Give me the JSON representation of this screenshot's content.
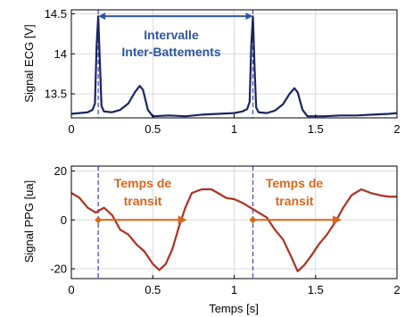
{
  "chart_data": [
    {
      "type": "line",
      "ylabel": "Signal ECG [V]",
      "xlim": [
        0,
        2
      ],
      "ylim": [
        13.2,
        14.55
      ],
      "x_ticks": [
        0,
        0.5,
        1,
        1.5,
        2
      ],
      "x_tick_labels": [
        "0",
        "0.5",
        "1",
        "1.5",
        "2"
      ],
      "y_ticks": [
        13.5,
        14,
        14.5
      ],
      "y_tick_labels": [
        "13.5",
        "14",
        "14.5"
      ],
      "grid": true,
      "series": [
        {
          "color": "#1a2560",
          "x": [
            0,
            0.05,
            0.1,
            0.13,
            0.145,
            0.155,
            0.165,
            0.175,
            0.185,
            0.2,
            0.25,
            0.3,
            0.35,
            0.39,
            0.42,
            0.44,
            0.47,
            0.5,
            0.6,
            0.7,
            0.8,
            0.9,
            1.0,
            1.05,
            1.08,
            1.095,
            1.105,
            1.115,
            1.125,
            1.135,
            1.15,
            1.2,
            1.25,
            1.3,
            1.34,
            1.37,
            1.39,
            1.42,
            1.45,
            1.55,
            1.65,
            1.75,
            1.85,
            1.95,
            2.0
          ],
          "y": [
            13.25,
            13.26,
            13.27,
            13.3,
            13.38,
            14.1,
            14.47,
            13.9,
            13.35,
            13.28,
            13.27,
            13.3,
            13.38,
            13.52,
            13.6,
            13.55,
            13.3,
            13.22,
            13.23,
            13.22,
            13.24,
            13.25,
            13.26,
            13.28,
            13.31,
            13.4,
            14.1,
            14.47,
            13.85,
            13.33,
            13.27,
            13.26,
            13.29,
            13.37,
            13.5,
            13.57,
            13.52,
            13.3,
            13.22,
            13.22,
            13.23,
            13.23,
            13.24,
            13.25,
            13.26
          ]
        }
      ],
      "markers_x": [
        0.165,
        1.115
      ],
      "annotation": {
        "text_lines": [
          "Intervalle",
          "Inter-Battements"
        ],
        "color": "#2e55a5",
        "arrow_x": [
          0.165,
          1.115
        ],
        "arrow_y": 14.47
      }
    },
    {
      "type": "line",
      "xlabel": "Temps [s]",
      "ylabel": "Signal PPG [ua]",
      "xlim": [
        0,
        2
      ],
      "ylim": [
        -24,
        22
      ],
      "x_ticks": [
        0,
        0.5,
        1,
        1.5,
        2
      ],
      "x_tick_labels": [
        "0",
        "0.5",
        "1",
        "1.5",
        "2"
      ],
      "y_ticks": [
        -20,
        0,
        20
      ],
      "y_tick_labels": [
        "-20",
        "0",
        "20"
      ],
      "grid": true,
      "series": [
        {
          "color": "#b03020",
          "x": [
            0,
            0.05,
            0.1,
            0.15,
            0.2,
            0.25,
            0.3,
            0.35,
            0.4,
            0.45,
            0.5,
            0.54,
            0.58,
            0.62,
            0.66,
            0.7,
            0.74,
            0.8,
            0.86,
            0.9,
            0.95,
            1.0,
            1.05,
            1.1,
            1.15,
            1.2,
            1.25,
            1.3,
            1.35,
            1.39,
            1.43,
            1.47,
            1.52,
            1.57,
            1.62,
            1.67,
            1.72,
            1.78,
            1.84,
            1.9,
            1.95,
            2.0
          ],
          "y": [
            11,
            9,
            5,
            3,
            5,
            2,
            -4,
            -6,
            -10,
            -13,
            -18,
            -20.5,
            -18,
            -12,
            -3,
            5,
            11,
            12.5,
            12.5,
            11,
            9,
            8.5,
            7,
            5,
            3,
            1,
            -4,
            -8,
            -15,
            -21,
            -18.5,
            -15,
            -10,
            -6,
            -1,
            5,
            10,
            12.5,
            11,
            10,
            9.5,
            9.5
          ]
        }
      ],
      "markers_x": [
        0.165,
        1.115
      ],
      "annotations": [
        {
          "text_lines": [
            "Temps de",
            "transit"
          ],
          "arrow_x": [
            0.165,
            0.71
          ],
          "arrow_y": 0
        },
        {
          "text_lines": [
            "Temps de",
            "transit"
          ],
          "arrow_x": [
            1.115,
            1.66
          ],
          "arrow_y": 0
        }
      ],
      "annotation_color": "#d9661a"
    }
  ]
}
